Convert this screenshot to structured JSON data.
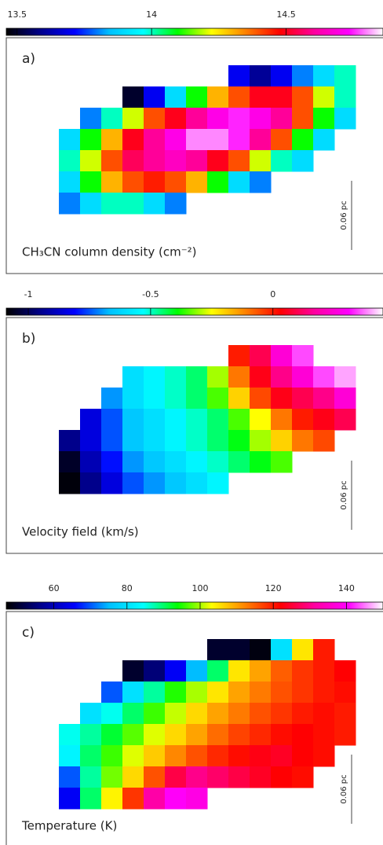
{
  "chart_data": [
    {
      "type": "heatmap",
      "label": "a)",
      "caption": "CH₃CN column density (cm⁻²)",
      "scale_label": "0.06 pc",
      "clim": [
        13.46,
        14.86
      ],
      "cticks": [
        13.5,
        14,
        14.5
      ],
      "colormap": [
        "#000000",
        "#00008b",
        "#0000ff",
        "#00bfff",
        "#00ffff",
        "#00ff00",
        "#ffff00",
        "#ff8000",
        "#ff0000",
        "#ff00a0",
        "#ff00ff",
        "#ffffff"
      ],
      "values": [
        [
          null,
          null,
          null,
          null,
          null,
          null,
          null,
          null,
          13.7,
          13.6,
          13.7,
          13.8,
          13.9,
          14.0
        ],
        [
          null,
          null,
          null,
          13.5,
          13.7,
          13.9,
          14.1,
          14.3,
          14.4,
          14.5,
          14.5,
          14.4,
          14.2,
          14.0
        ],
        [
          null,
          13.8,
          14.0,
          14.2,
          14.4,
          14.5,
          14.6,
          14.7,
          14.75,
          14.7,
          14.6,
          14.4,
          14.1,
          13.9
        ],
        [
          13.9,
          14.1,
          14.3,
          14.5,
          14.6,
          14.7,
          14.8,
          14.8,
          14.75,
          14.6,
          14.4,
          14.1,
          13.9,
          null
        ],
        [
          14.0,
          14.2,
          14.4,
          14.55,
          14.6,
          14.65,
          14.6,
          14.5,
          14.4,
          14.2,
          14.0,
          13.9,
          null,
          null
        ],
        [
          13.9,
          14.1,
          14.3,
          14.4,
          14.45,
          14.4,
          14.3,
          14.1,
          13.9,
          13.8,
          null,
          null,
          null,
          null
        ],
        [
          13.8,
          13.9,
          14.0,
          14.0,
          13.9,
          13.8,
          null,
          null,
          null,
          null,
          null,
          null,
          null,
          null
        ]
      ]
    },
    {
      "type": "heatmap",
      "label": "b)",
      "caption": "Velocity field (km/s)",
      "scale_label": "0.06 pc",
      "clim": [
        -1.09,
        0.45
      ],
      "cticks": [
        -1,
        -0.5,
        0
      ],
      "colormap": [
        "#000000",
        "#00008b",
        "#0000ff",
        "#00bfff",
        "#00ffff",
        "#00ff00",
        "#ffff00",
        "#ff8000",
        "#ff0000",
        "#ff00a0",
        "#ff00ff",
        "#ffffff"
      ],
      "values": [
        [
          null,
          null,
          null,
          null,
          null,
          null,
          null,
          null,
          0.0,
          0.1,
          0.25,
          0.35,
          null,
          null
        ],
        [
          null,
          null,
          null,
          -0.6,
          -0.55,
          -0.5,
          -0.45,
          -0.3,
          -0.1,
          0.05,
          0.15,
          0.25,
          0.35,
          0.4
        ],
        [
          null,
          null,
          -0.7,
          -0.6,
          -0.55,
          -0.5,
          -0.45,
          -0.35,
          -0.2,
          -0.05,
          0.05,
          0.1,
          0.15,
          0.25
        ],
        [
          null,
          -0.85,
          -0.75,
          -0.65,
          -0.6,
          -0.55,
          -0.5,
          -0.45,
          -0.35,
          -0.25,
          -0.1,
          0.0,
          0.05,
          0.1
        ],
        [
          -0.95,
          -0.85,
          -0.75,
          -0.65,
          -0.6,
          -0.55,
          -0.5,
          -0.45,
          -0.4,
          -0.3,
          -0.2,
          -0.1,
          -0.05,
          null
        ],
        [
          -1.05,
          -0.9,
          -0.8,
          -0.7,
          -0.65,
          -0.6,
          -0.55,
          -0.5,
          -0.45,
          -0.4,
          -0.35,
          null,
          null,
          null
        ],
        [
          -1.08,
          -0.95,
          -0.85,
          -0.75,
          -0.7,
          -0.65,
          -0.6,
          -0.55,
          null,
          null,
          null,
          null,
          null,
          null
        ]
      ]
    },
    {
      "type": "heatmap",
      "label": "c)",
      "caption": "Temperature (K)",
      "scale_label": "0.06 pc",
      "clim": [
        47,
        150
      ],
      "cticks": [
        60,
        80,
        100,
        120,
        140
      ],
      "colormap": [
        "#000000",
        "#00008b",
        "#0000ff",
        "#00bfff",
        "#00ffff",
        "#00ff00",
        "#ffff00",
        "#ff8000",
        "#ff0000",
        "#ff00a0",
        "#ff00ff",
        "#ffffff"
      ],
      "values": [
        [
          null,
          null,
          null,
          null,
          null,
          null,
          null,
          50,
          50,
          48,
          80,
          105,
          120,
          null
        ],
        [
          null,
          null,
          null,
          50,
          55,
          65,
          75,
          90,
          105,
          110,
          115,
          118,
          120,
          122
        ],
        [
          null,
          null,
          70,
          80,
          88,
          95,
          100,
          105,
          110,
          113,
          116,
          118,
          120,
          121
        ],
        [
          null,
          80,
          85,
          90,
          96,
          101,
          106,
          110,
          113,
          116,
          118,
          120,
          121,
          120
        ],
        [
          85,
          88,
          92,
          97,
          102,
          106,
          110,
          114,
          117,
          119,
          121,
          122,
          121,
          120
        ],
        [
          83,
          90,
          96,
          102,
          107,
          112,
          116,
          119,
          121,
          123,
          124,
          122,
          121,
          null
        ],
        [
          70,
          88,
          98,
          106,
          116,
          126,
          130,
          128,
          126,
          124,
          122,
          121,
          null,
          null
        ],
        [
          65,
          90,
          104,
          118,
          132,
          140,
          138,
          null,
          null,
          null,
          null,
          null,
          null,
          null
        ]
      ]
    }
  ]
}
